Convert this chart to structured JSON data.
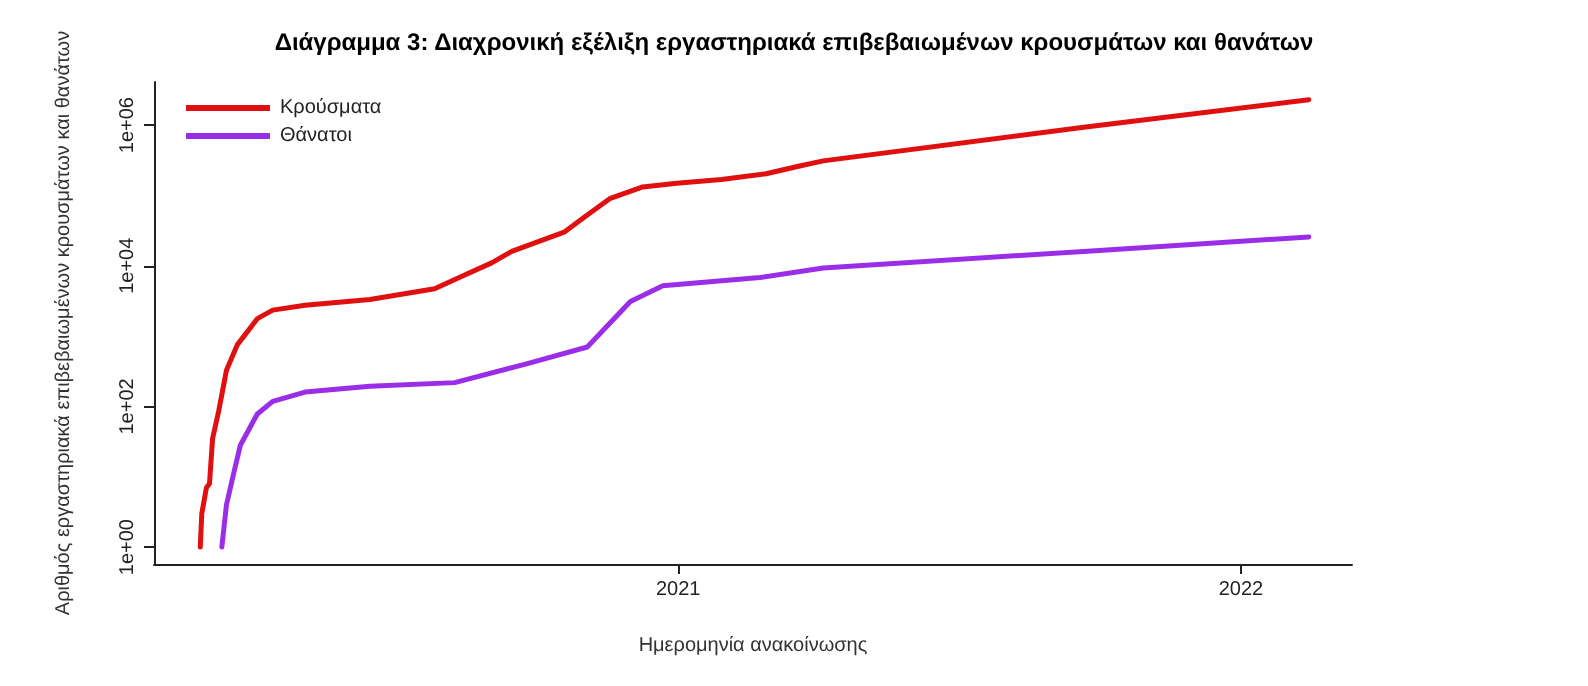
{
  "chart_data": {
    "type": "line",
    "title": "Διάγραμμα 3: Διαχρονική εξέλιξη εργαστηριακά επιβεβαιωμένων κρουσμάτων και θανάτων",
    "xlabel": "Ημερομηνία ανακοίνωσης",
    "ylabel": "Αριθμός εργαστηριακά επιβεβαιωμένων κρουσμάτων και θανάτων",
    "log": "y",
    "grid": false,
    "legend": "top left",
    "marker": "none",
    "line_style": "solid",
    "xlim": [
      "2020-01-27",
      "2022-03-14"
    ],
    "xticks": [
      {
        "value": "2021-01-01",
        "label": "2021"
      },
      {
        "value": "2022-01-01",
        "label": "2022"
      }
    ],
    "ylim": [
      0.575,
      4100000
    ],
    "yticks": [
      {
        "value": 1,
        "label": "1e+00"
      },
      {
        "value": 100,
        "label": "1e+02"
      },
      {
        "value": 10000,
        "label": "1e+04"
      },
      {
        "value": 1000000,
        "label": "1e+06"
      }
    ],
    "series": [
      {
        "name": "Κρούσματα",
        "color": "#e01010",
        "x": [
          "2020-02-26",
          "2020-02-27",
          "2020-03-01",
          "2020-03-03",
          "2020-03-05",
          "2020-03-09",
          "2020-03-14",
          "2020-03-21",
          "2020-04-03",
          "2020-04-13",
          "2020-05-04",
          "2020-06-15",
          "2020-07-27",
          "2020-08-13",
          "2020-09-02",
          "2020-09-15",
          "2020-10-19",
          "2020-11-01",
          "2020-11-18",
          "2020-12-09",
          "2020-12-31",
          "2021-01-29",
          "2021-02-27",
          "2021-03-20",
          "2021-04-05",
          "2021-09-21",
          "2022-02-14"
        ],
        "values": [
          1,
          3,
          7,
          8,
          35,
          87,
          327,
          750,
          1770,
          2340,
          2750,
          3310,
          4700,
          7000,
          11000,
          16000,
          30000,
          49000,
          91000,
          132000,
          149000,
          168000,
          203000,
          260000,
          310000,
          930000,
          2300000
        ]
      },
      {
        "name": "Θάνατοι",
        "color": "#9a2ee8",
        "x": [
          "2020-03-11",
          "2020-03-14",
          "2020-03-19",
          "2020-03-23",
          "2020-04-03",
          "2020-04-13",
          "2020-05-04",
          "2020-06-15",
          "2020-08-09",
          "2020-09-24",
          "2020-11-03",
          "2020-12-01",
          "2020-12-22",
          "2021-02-23",
          "2021-04-05",
          "2021-09-21",
          "2022-02-14"
        ],
        "values": [
          1,
          4,
          12,
          28,
          78,
          118,
          160,
          194,
          218,
          400,
          700,
          3100,
          5200,
          6800,
          9300,
          16000,
          25700
        ]
      }
    ]
  }
}
